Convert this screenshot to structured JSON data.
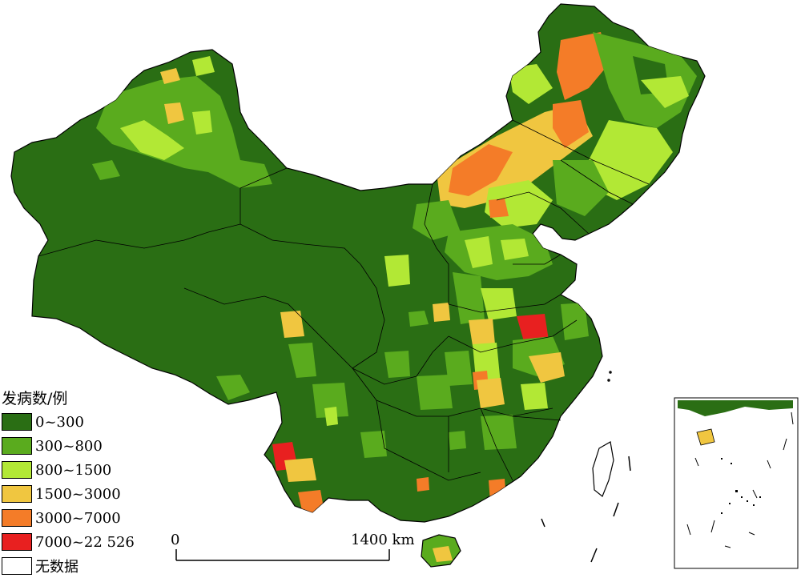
{
  "legend": {
    "title": "发病数/例",
    "classes": [
      {
        "label": "0~300",
        "color": "#2a6e14"
      },
      {
        "label": "300~800",
        "color": "#5aab1e"
      },
      {
        "label": "800~1500",
        "color": "#b2e835"
      },
      {
        "label": "1500~3000",
        "color": "#f0c640"
      },
      {
        "label": "3000~7000",
        "color": "#f47c28"
      },
      {
        "label": "7000~22 526",
        "color": "#e82020"
      },
      {
        "label": "无数据",
        "color": "#ffffff"
      }
    ]
  },
  "scale_bar": {
    "start_label": "0",
    "end_label": "1400 km"
  }
}
